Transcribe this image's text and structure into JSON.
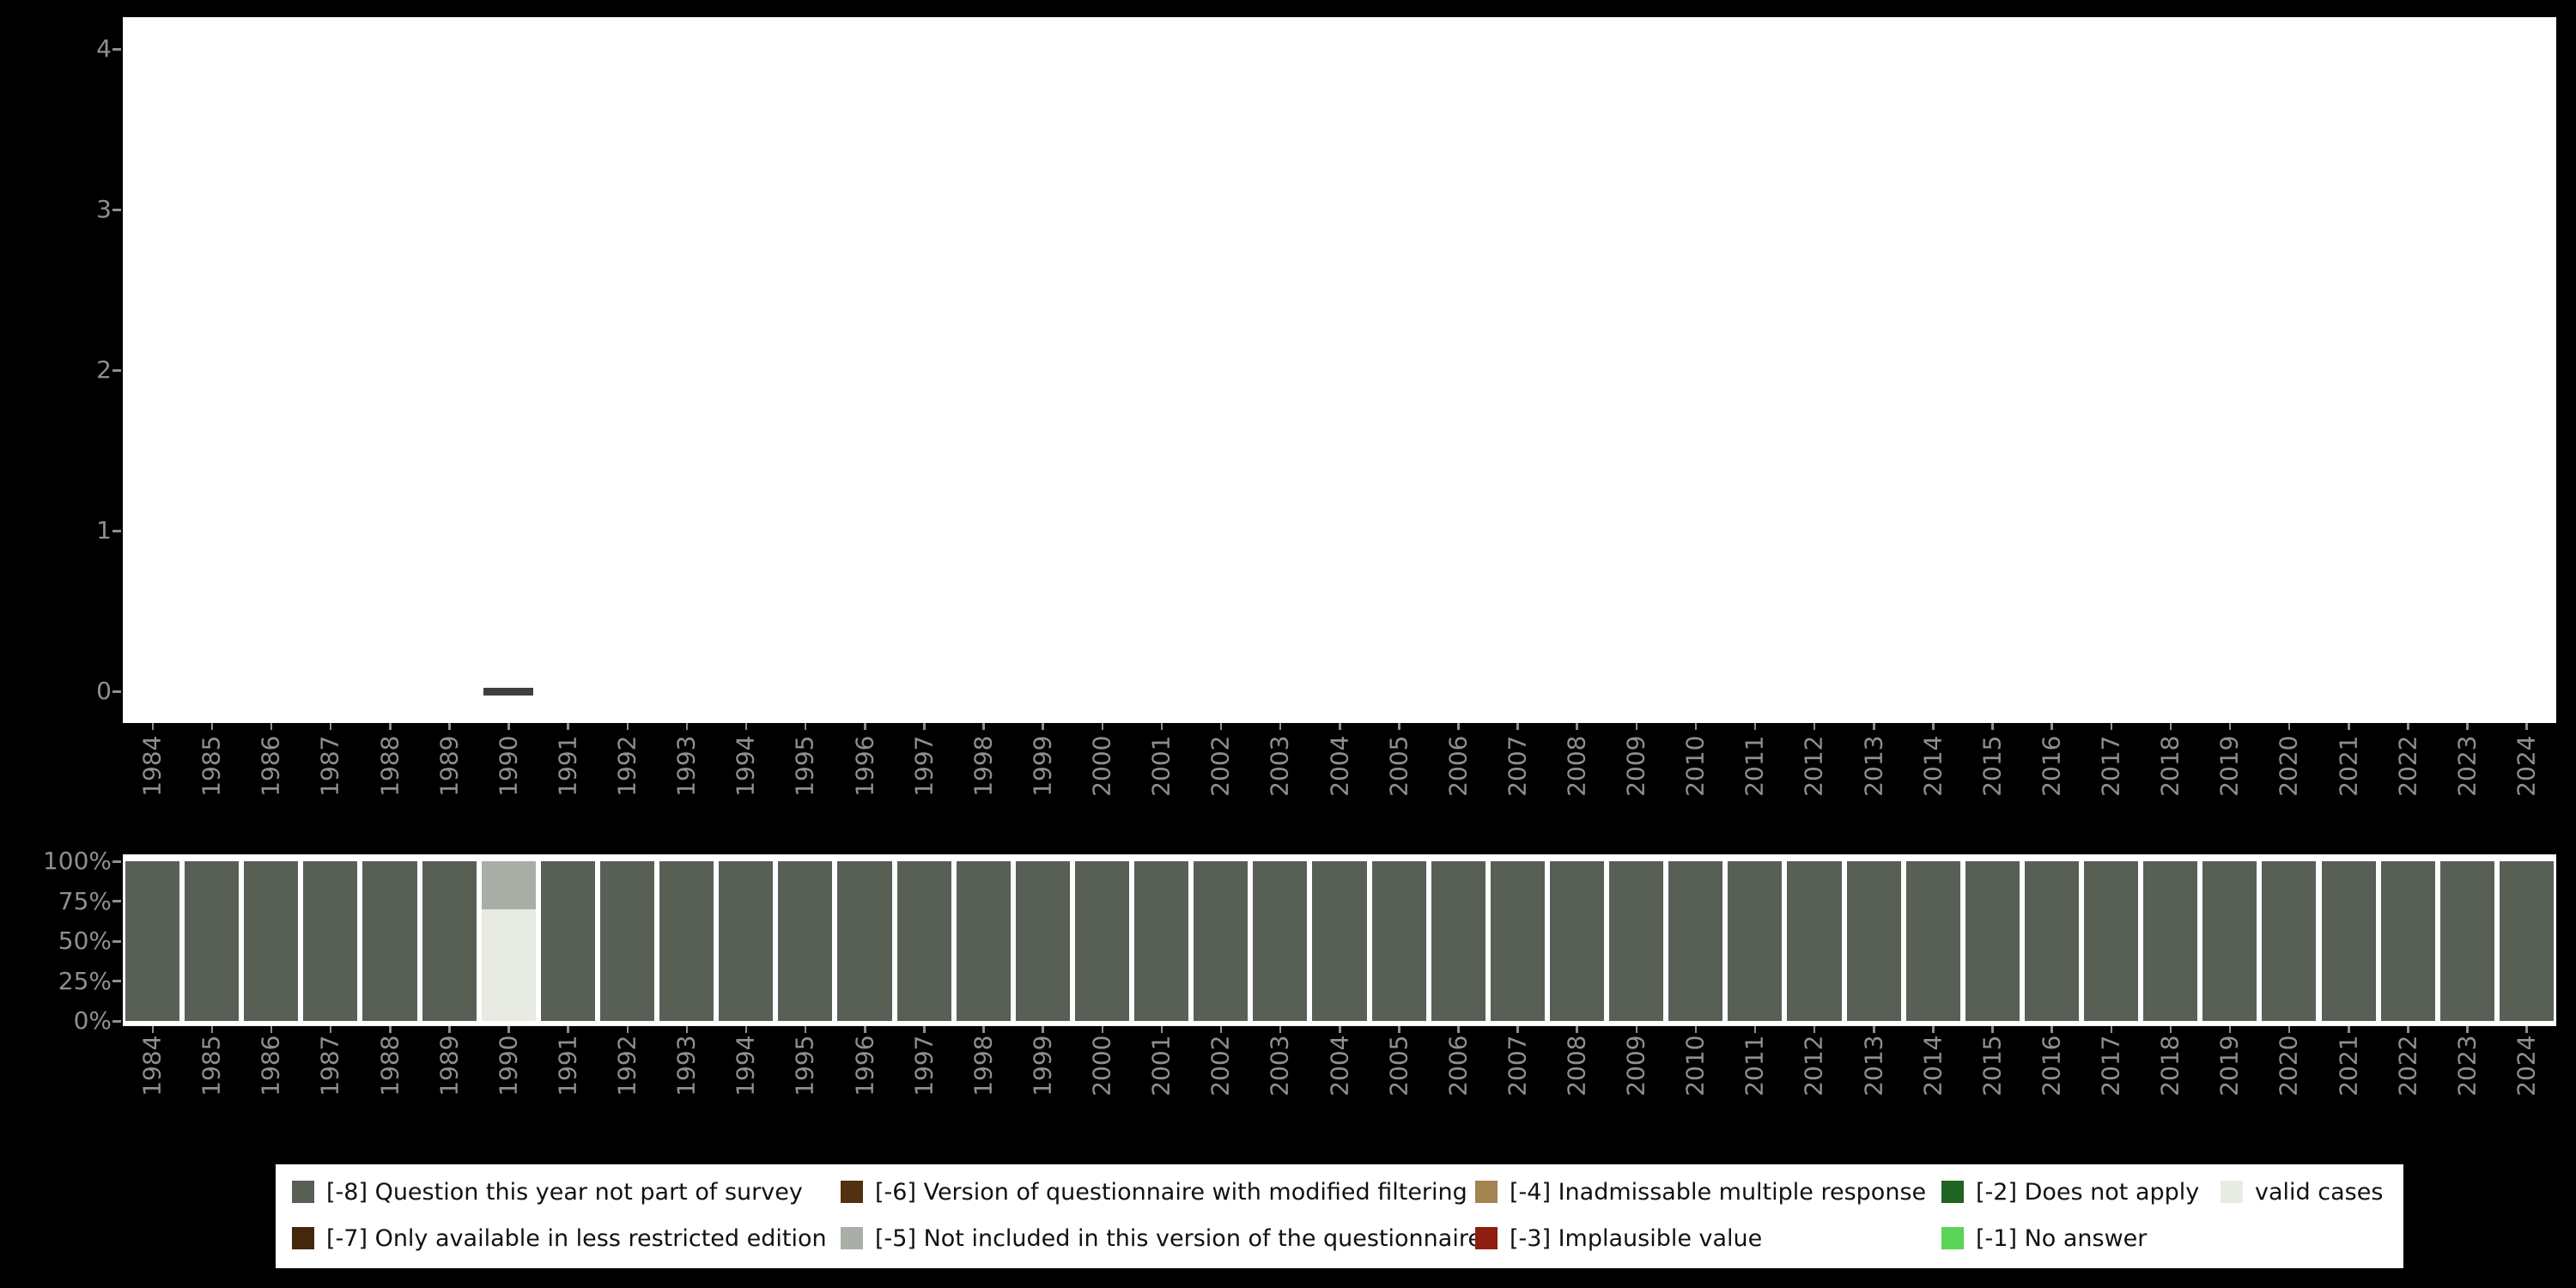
{
  "page": {
    "background": "#000000",
    "plot_background": "#ffffff",
    "axis_text_color": "#8f8f8f"
  },
  "chart_data": [
    {
      "type": "scatter",
      "title": "",
      "xlabel": "",
      "ylabel": "",
      "x_categories": [
        "1984",
        "1985",
        "1986",
        "1987",
        "1988",
        "1989",
        "1990",
        "1991",
        "1992",
        "1993",
        "1994",
        "1995",
        "1996",
        "1997",
        "1998",
        "1999",
        "2000",
        "2001",
        "2002",
        "2003",
        "2004",
        "2005",
        "2006",
        "2007",
        "2008",
        "2009",
        "2010",
        "2011",
        "2012",
        "2013",
        "2014",
        "2015",
        "2016",
        "2017",
        "2018",
        "2019",
        "2020",
        "2021",
        "2022",
        "2023",
        "2024"
      ],
      "ylim": [
        0,
        4
      ],
      "yticks": [
        "4",
        "3",
        "2",
        "1",
        "0"
      ],
      "ytick_values": [
        4,
        3,
        2,
        1,
        0
      ],
      "grid": false,
      "points": [
        {
          "x": "1990",
          "y": 0,
          "note": "short dark horizontal dash at value 0",
          "color": "#3c413b"
        }
      ]
    },
    {
      "type": "bar",
      "subtype": "stacked-percent",
      "title": "",
      "xlabel": "",
      "ylabel": "",
      "categories": [
        "1984",
        "1985",
        "1986",
        "1987",
        "1988",
        "1989",
        "1990",
        "1991",
        "1992",
        "1993",
        "1994",
        "1995",
        "1996",
        "1997",
        "1998",
        "1999",
        "2000",
        "2001",
        "2002",
        "2003",
        "2004",
        "2005",
        "2006",
        "2007",
        "2008",
        "2009",
        "2010",
        "2011",
        "2012",
        "2013",
        "2014",
        "2015",
        "2016",
        "2017",
        "2018",
        "2019",
        "2020",
        "2021",
        "2022",
        "2023",
        "2024"
      ],
      "yticks": [
        "100%",
        "75%",
        "50%",
        "25%",
        "0%"
      ],
      "ytick_values": [
        100,
        75,
        50,
        25,
        0
      ],
      "grid": false,
      "series_bottom_to_top": [
        {
          "name": "valid cases",
          "color": "#e7ebe2",
          "values": [
            0,
            0,
            0,
            0,
            0,
            0,
            70,
            0,
            0,
            0,
            0,
            0,
            0,
            0,
            0,
            0,
            0,
            0,
            0,
            0,
            0,
            0,
            0,
            0,
            0,
            0,
            0,
            0,
            0,
            0,
            0,
            0,
            0,
            0,
            0,
            0,
            0,
            0,
            0,
            0,
            0
          ]
        },
        {
          "name": "[-5] Not included in this version of the questionnaire",
          "color": "#a9afa6",
          "values": [
            0,
            0,
            0,
            0,
            0,
            0,
            30,
            0,
            0,
            0,
            0,
            0,
            0,
            0,
            0,
            0,
            0,
            0,
            0,
            0,
            0,
            0,
            0,
            0,
            0,
            0,
            0,
            0,
            0,
            0,
            0,
            0,
            0,
            0,
            0,
            0,
            0,
            0,
            0,
            0,
            0
          ]
        },
        {
          "name": "[-8] Question this year not part of survey",
          "color": "#586056",
          "values": [
            100,
            100,
            100,
            100,
            100,
            100,
            0,
            100,
            100,
            100,
            100,
            100,
            100,
            100,
            100,
            100,
            100,
            100,
            100,
            100,
            100,
            100,
            100,
            100,
            100,
            100,
            100,
            100,
            100,
            100,
            100,
            100,
            100,
            100,
            100,
            100,
            100,
            100,
            100,
            100,
            100
          ]
        }
      ]
    }
  ],
  "legend": {
    "background": "#ffffff",
    "columns": [
      [
        {
          "label": "[-8] Question this year not part of survey",
          "color": "#586056"
        },
        {
          "label": "[-7] Only available in less restricted edition",
          "color": "#45270c"
        }
      ],
      [
        {
          "label": "[-6] Version of questionnaire with modified filtering",
          "color": "#53300f"
        },
        {
          "label": "[-5] Not included in this version of the questionnaire",
          "color": "#a9afa6"
        }
      ],
      [
        {
          "label": "[-4] Inadmissable multiple response",
          "color": "#a3834f"
        },
        {
          "label": "[-3] Implausible value",
          "color": "#8f1d10"
        }
      ],
      [
        {
          "label": "[-2] Does not apply",
          "color": "#1f6420"
        },
        {
          "label": "[-1] No answer",
          "color": "#5ad356"
        }
      ],
      [
        {
          "label": "valid cases",
          "color": "#e7ebe2"
        }
      ]
    ]
  }
}
